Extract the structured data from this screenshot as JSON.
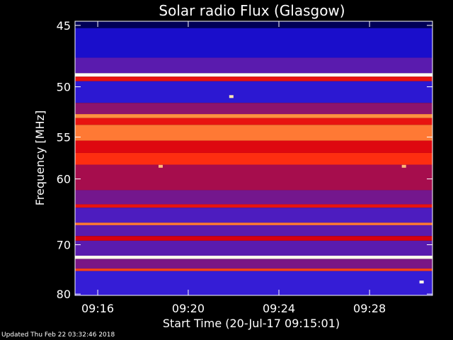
{
  "chart_data": {
    "type": "heatmap",
    "title": "Solar radio Flux (Glasgow)",
    "xlabel": "Start Time (20-Jul-17 09:15:01)",
    "ylabel": "Frequency [MHz]",
    "x_unit": "minutes",
    "x_start": "09:15:01",
    "xlim": [
      9.25,
      9.513
    ],
    "xtick_values": [
      9.2667,
      9.3333,
      9.4,
      9.4667
    ],
    "xtick_labels": [
      "09:16",
      "09:20",
      "09:24",
      "09:28"
    ],
    "ylim": [
      44.7,
      80.3
    ],
    "ytick_values": [
      45,
      50,
      55,
      60,
      70,
      80
    ],
    "ytick_labels": [
      "45",
      "50",
      "55",
      "60",
      "70",
      "80"
    ],
    "y_scale": "reciprocal",
    "colormap": [
      "#000010",
      "#0000c0",
      "#3a1fd8",
      "#8a1470",
      "#d80010",
      "#ff3010",
      "#ff9040",
      "#ffffd0",
      "#ffffff"
    ],
    "bands": [
      {
        "freq_min": 44.7,
        "freq_max": 45.2,
        "level": 0.05
      },
      {
        "freq_min": 45.2,
        "freq_max": 47.5,
        "level": 0.18
      },
      {
        "freq_min": 47.5,
        "freq_max": 48.8,
        "level": 0.3
      },
      {
        "freq_min": 48.8,
        "freq_max": 49.1,
        "level": 0.98
      },
      {
        "freq_min": 49.1,
        "freq_max": 49.5,
        "level": 0.55
      },
      {
        "freq_min": 49.5,
        "freq_max": 51.5,
        "level": 0.22
      },
      {
        "freq_min": 51.5,
        "freq_max": 52.6,
        "level": 0.38
      },
      {
        "freq_min": 52.6,
        "freq_max": 53.0,
        "level": 0.75
      },
      {
        "freq_min": 53.0,
        "freq_max": 53.7,
        "level": 0.55
      },
      {
        "freq_min": 53.7,
        "freq_max": 55.4,
        "level": 0.72
      },
      {
        "freq_min": 55.4,
        "freq_max": 56.8,
        "level": 0.52
      },
      {
        "freq_min": 56.8,
        "freq_max": 58.2,
        "level": 0.62
      },
      {
        "freq_min": 58.2,
        "freq_max": 61.5,
        "level": 0.42
      },
      {
        "freq_min": 61.5,
        "freq_max": 63.5,
        "level": 0.34
      },
      {
        "freq_min": 63.5,
        "freq_max": 64.0,
        "level": 0.55
      },
      {
        "freq_min": 64.0,
        "freq_max": 66.3,
        "level": 0.28
      },
      {
        "freq_min": 66.3,
        "freq_max": 66.7,
        "level": 0.72
      },
      {
        "freq_min": 66.7,
        "freq_max": 68.5,
        "level": 0.3
      },
      {
        "freq_min": 68.5,
        "freq_max": 69.3,
        "level": 0.5
      },
      {
        "freq_min": 69.3,
        "freq_max": 72.0,
        "level": 0.3
      },
      {
        "freq_min": 72.0,
        "freq_max": 72.6,
        "level": 0.95
      },
      {
        "freq_min": 72.6,
        "freq_max": 74.5,
        "level": 0.35
      },
      {
        "freq_min": 74.5,
        "freq_max": 75.0,
        "level": 0.65
      },
      {
        "freq_min": 75.0,
        "freq_max": 80.3,
        "level": 0.24
      }
    ],
    "features": [
      {
        "time": 9.365,
        "freq": 50.9,
        "level": 0.85
      },
      {
        "time": 9.313,
        "freq": 58.4,
        "level": 0.8
      },
      {
        "time": 9.492,
        "freq": 58.4,
        "level": 0.8
      },
      {
        "time": 9.505,
        "freq": 77.3,
        "level": 0.95
      }
    ]
  },
  "footer": {
    "updated": "Updated Thu Feb 22 03:32:46 2018"
  }
}
